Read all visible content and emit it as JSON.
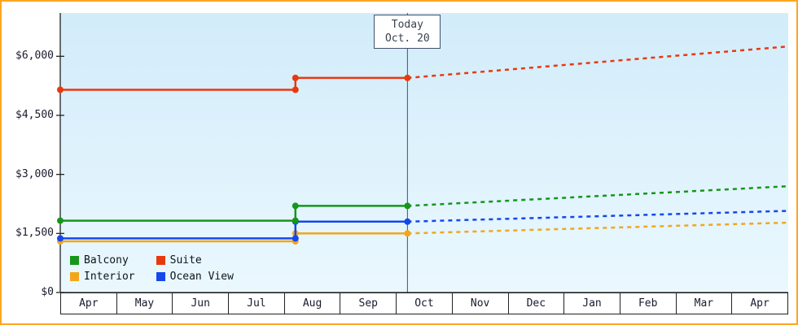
{
  "chart_data": {
    "type": "line",
    "x_months": [
      "Apr",
      "May",
      "Jun",
      "Jul",
      "Aug",
      "Sep",
      "Oct",
      "Nov",
      "Dec",
      "Jan",
      "Feb",
      "Mar",
      "Apr"
    ],
    "y_ticks": [
      {
        "value": 0,
        "label": "$0"
      },
      {
        "value": 1500,
        "label": "$1,500"
      },
      {
        "value": 3000,
        "label": "$3,000"
      },
      {
        "value": 4500,
        "label": "$4,500"
      },
      {
        "value": 6000,
        "label": "$6,000"
      }
    ],
    "ymin": 0,
    "ymax": 7100,
    "grid": "off",
    "today": {
      "line1": "Today",
      "line2": "Oct. 20",
      "month_index": 6.2
    },
    "series": [
      {
        "name": "Interior",
        "color": "#f2a71b",
        "solid": [
          [
            0,
            1300
          ],
          [
            4.2,
            1300
          ],
          [
            4.2,
            1500
          ],
          [
            6.2,
            1500
          ]
        ],
        "projection": [
          [
            6.2,
            1500
          ],
          [
            13,
            1775
          ]
        ]
      },
      {
        "name": "Ocean View",
        "color": "#1547ee",
        "solid": [
          [
            0,
            1375
          ],
          [
            4.2,
            1375
          ],
          [
            4.2,
            1800
          ],
          [
            6.2,
            1800
          ]
        ],
        "projection": [
          [
            6.2,
            1800
          ],
          [
            13,
            2075
          ]
        ]
      },
      {
        "name": "Balcony",
        "color": "#16961b",
        "solid": [
          [
            0,
            1825
          ],
          [
            4.2,
            1825
          ],
          [
            4.2,
            2200
          ],
          [
            6.2,
            2200
          ]
        ],
        "projection": [
          [
            6.2,
            2200
          ],
          [
            13,
            2700
          ]
        ]
      },
      {
        "name": "Suite",
        "color": "#e8390e",
        "solid": [
          [
            0,
            5150
          ],
          [
            4.2,
            5150
          ],
          [
            4.2,
            5450
          ],
          [
            6.2,
            5450
          ]
        ],
        "projection": [
          [
            6.2,
            5450
          ],
          [
            13,
            6250
          ]
        ]
      }
    ],
    "legend": [
      {
        "label": "Balcony",
        "color": "#16961b"
      },
      {
        "label": "Suite",
        "color": "#e8390e"
      },
      {
        "label": "Interior",
        "color": "#f2a71b"
      },
      {
        "label": "Ocean View",
        "color": "#1547ee"
      }
    ],
    "legend_position": "bottom-left-inside",
    "colors": {
      "frame_border": "#ffa51f",
      "axis": "#222222",
      "today_line": "#44506a",
      "plot_bg_top": "#d2ecfa",
      "plot_bg_bottom": "#eaf8fe"
    }
  }
}
